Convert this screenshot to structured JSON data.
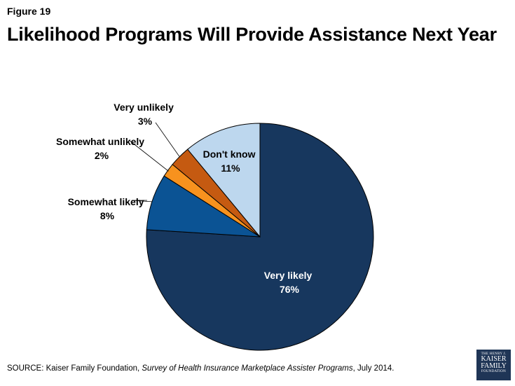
{
  "figure_label": "Figure 19",
  "title": "Likelihood Programs Will Provide Assistance Next Year",
  "chart_data": {
    "type": "pie",
    "title": "Likelihood Programs Will Provide Assistance Next Year",
    "slices": [
      {
        "label": "Very likely",
        "value": 76,
        "text": "76%",
        "color": "#17375e"
      },
      {
        "label": "Somewhat likely",
        "value": 8,
        "text": "8%",
        "color": "#0b5394"
      },
      {
        "label": "Somewhat unlikely",
        "value": 2,
        "text": "2%",
        "color": "#f7921e"
      },
      {
        "label": "Very unlikely",
        "value": 3,
        "text": "3%",
        "color": "#c55a11"
      },
      {
        "label": "Don't know",
        "value": 11,
        "text": "11%",
        "color": "#bdd7ee"
      }
    ]
  },
  "source": {
    "prefix": "SOURCE: Kaiser Family Foundation, ",
    "italic": "Survey of Health Insurance Marketplace Assister Programs",
    "suffix": ", July 2014."
  },
  "logo": {
    "line1": "THE HENRY J.",
    "line2": "KAISER",
    "line3": "FAMILY",
    "line4": "FOUNDATION"
  }
}
